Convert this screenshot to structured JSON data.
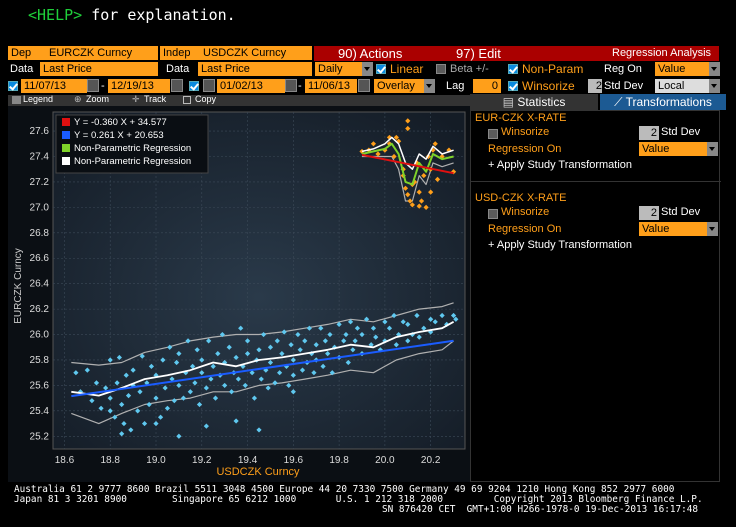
{
  "help": {
    "key": "<HELP>",
    "text": " for explanation."
  },
  "header": {
    "dep_label": "Dep",
    "dep_value": "EURCZK Curncy",
    "indep_label": "Indep",
    "indep_value": "USDCZK Curncy",
    "actions": "90) Actions",
    "edit": "97) Edit",
    "title": "Regression Analysis"
  },
  "row2": {
    "data_label_1": "Data",
    "data_value_1": "Last Price",
    "data_label_2": "Data",
    "data_value_2": "Last Price",
    "freq": "Daily",
    "linear": "Linear",
    "beta": "Beta +/-",
    "nonparam": "Non-Param",
    "reg_on_label": "Reg On",
    "reg_on_value": "Value"
  },
  "row3": {
    "start1": "11/07/13",
    "end1": "12/19/13",
    "start2": "01/02/13",
    "end2": "11/06/13",
    "overlay": "Overlay",
    "lag_label": "Lag",
    "lag_value": "0",
    "winsorize": "Winsorize",
    "std_num": "2",
    "std_label": "Std Dev",
    "ccy": "Local CCY"
  },
  "toolbar": {
    "legend": "Legend",
    "zoom": "Zoom",
    "track": "Track",
    "copy": "Copy"
  },
  "tabs": {
    "statistics": "Statistics",
    "transformations": "Transformations"
  },
  "right": {
    "sec1": {
      "title": "EUR-CZK X-RATE",
      "winsorize": "Winsorize",
      "std_num": "2",
      "std_label": "Std Dev",
      "reg_on": "Regression On",
      "reg_value": "Value",
      "apply": "+ Apply Study Transformation"
    },
    "sec2": {
      "title": "USD-CZK X-RATE",
      "winsorize": "Winsorize",
      "std_num": "2",
      "std_label": "Std Dev",
      "reg_on": "Regression On",
      "reg_value": "Value",
      "apply": "+ Apply Study Transformation"
    }
  },
  "footer": {
    "line1": "Australia 61 2 9777 8600 Brazil 5511 3048 4500 Europe 44 20 7330 7500 Germany 49 69 9204 1210 Hong Kong 852 2977 6000",
    "line2": "Japan 81 3 3201 8900        Singapore 65 6212 1000       U.S. 1 212 318 2000         Copyright 2013 Bloomberg Finance L.P.",
    "line3": "SN 876420 CET  GMT+1:00 H266-1978-0 19-Dec-2013 16:17:48"
  },
  "colors": {
    "orange": "#ff9f1a",
    "red": "#e01010",
    "blue": "#1a5cff",
    "green": "#7fd32a",
    "cyan": "#5fc8ef"
  },
  "chart_data": {
    "type": "scatter",
    "xlabel": "USDCZK Curncy",
    "ylabel": "EURCZK Curncy",
    "xlim": [
      18.55,
      20.35
    ],
    "ylim": [
      25.1,
      27.75
    ],
    "xticks": [
      "18.6",
      "18.8",
      "19.0",
      "19.2",
      "19.4",
      "19.6",
      "19.8",
      "20.0",
      "20.2"
    ],
    "yticks": [
      "25.2",
      "25.4",
      "25.6",
      "25.8",
      "26.0",
      "26.2",
      "26.4",
      "26.6",
      "26.8",
      "27.0",
      "27.2",
      "27.4",
      "27.6"
    ],
    "legend": [
      {
        "label": "Y = -0.360 X + 34.577",
        "color": "#e01010"
      },
      {
        "label": "Y = 0.261 X + 20.653",
        "color": "#1a5cff"
      },
      {
        "label": "Non-Parametric Regression",
        "color": "#7fd32a"
      },
      {
        "label": "Non-Parametric Regression",
        "color": "#ffffff"
      }
    ],
    "series_recent": {
      "name": "",
      "x": [
        19.9,
        19.93,
        19.95,
        19.97,
        20.0,
        20.02,
        20.04,
        20.05,
        20.06,
        20.08,
        20.08,
        20.09,
        20.1,
        20.1,
        20.11,
        20.12,
        20.12,
        20.13,
        20.14,
        20.15,
        20.15,
        20.16,
        20.17,
        20.18,
        20.19,
        20.2,
        20.21,
        20.22,
        20.23,
        20.25,
        20.28,
        20.3,
        20.02,
        20.1,
        20.2
      ],
      "y": [
        27.44,
        27.45,
        27.5,
        27.42,
        27.45,
        27.55,
        27.4,
        27.55,
        27.52,
        27.3,
        27.25,
        27.15,
        27.62,
        27.1,
        27.05,
        27.18,
        27.02,
        27.2,
        27.35,
        27.12,
        27.01,
        27.05,
        27.25,
        27.0,
        27.4,
        27.3,
        27.45,
        27.5,
        27.22,
        27.4,
        27.45,
        27.28,
        27.5,
        27.68,
        27.12
      ]
    },
    "series_hist": {
      "name": "",
      "x": [
        18.65,
        18.67,
        18.7,
        18.72,
        18.74,
        18.76,
        18.78,
        18.8,
        18.8,
        18.82,
        18.83,
        18.84,
        18.85,
        18.86,
        18.87,
        18.88,
        18.89,
        18.9,
        18.9,
        18.92,
        18.93,
        18.94,
        18.95,
        18.96,
        18.97,
        18.98,
        19.0,
        19.0,
        19.02,
        19.03,
        19.04,
        19.05,
        19.06,
        19.07,
        19.08,
        19.09,
        19.1,
        19.1,
        19.12,
        19.13,
        19.14,
        19.15,
        19.16,
        19.17,
        19.18,
        19.19,
        19.2,
        19.2,
        19.22,
        19.23,
        19.24,
        19.25,
        19.26,
        19.27,
        19.28,
        19.29,
        19.3,
        19.3,
        19.32,
        19.33,
        19.34,
        19.35,
        19.36,
        19.37,
        19.38,
        19.39,
        19.4,
        19.4,
        19.42,
        19.43,
        19.44,
        19.45,
        19.46,
        19.47,
        19.48,
        19.49,
        19.5,
        19.5,
        19.52,
        19.53,
        19.54,
        19.55,
        19.56,
        19.57,
        19.58,
        19.59,
        19.6,
        19.6,
        19.62,
        19.63,
        19.64,
        19.65,
        19.66,
        19.67,
        19.68,
        19.69,
        19.7,
        19.7,
        19.72,
        19.73,
        19.74,
        19.75,
        19.76,
        19.77,
        19.78,
        19.8,
        19.8,
        19.82,
        19.83,
        19.84,
        19.85,
        19.86,
        19.87,
        19.88,
        19.9,
        19.9,
        19.92,
        19.94,
        19.95,
        19.96,
        19.98,
        20.0,
        20.0,
        20.02,
        20.04,
        20.05,
        20.06,
        20.08,
        20.1,
        20.1,
        20.12,
        20.14,
        20.15,
        20.17,
        20.2,
        20.2,
        20.22,
        20.25,
        20.27,
        20.3,
        20.31,
        19.1,
        19.45,
        18.8,
        18.85,
        19.0,
        19.22,
        19.35,
        19.6
      ],
      "y": [
        25.7,
        25.55,
        25.72,
        25.48,
        25.62,
        25.42,
        25.58,
        25.8,
        25.5,
        25.35,
        25.62,
        25.82,
        25.45,
        25.3,
        25.68,
        25.52,
        25.25,
        25.6,
        25.72,
        25.4,
        25.55,
        25.83,
        25.3,
        25.62,
        25.45,
        25.75,
        25.5,
        25.68,
        25.35,
        25.8,
        25.58,
        25.42,
        25.9,
        25.65,
        25.48,
        25.78,
        25.6,
        25.85,
        25.5,
        25.7,
        25.95,
        25.55,
        25.75,
        25.62,
        25.88,
        25.45,
        25.7,
        25.8,
        25.58,
        25.95,
        25.65,
        25.75,
        25.5,
        25.85,
        25.68,
        26.0,
        25.6,
        25.78,
        25.9,
        25.55,
        25.7,
        25.82,
        25.65,
        26.05,
        25.75,
        25.6,
        25.85,
        25.95,
        25.7,
        25.5,
        25.8,
        25.88,
        25.65,
        26.0,
        25.72,
        25.58,
        25.9,
        25.78,
        25.62,
        25.95,
        25.7,
        25.85,
        26.02,
        25.75,
        25.6,
        25.92,
        25.8,
        25.68,
        26.0,
        25.88,
        25.72,
        25.95,
        25.78,
        26.05,
        25.85,
        25.7,
        25.92,
        25.8,
        26.05,
        25.75,
        25.95,
        25.85,
        26.0,
        25.7,
        25.9,
        26.08,
        25.82,
        25.95,
        26.0,
        25.78,
        26.1,
        25.88,
        25.95,
        26.05,
        25.85,
        26.0,
        26.12,
        25.92,
        26.05,
        25.98,
        25.88,
        26.1,
        25.95,
        26.05,
        26.15,
        25.92,
        26.0,
        26.1,
        25.95,
        26.08,
        26.0,
        26.15,
        25.98,
        26.05,
        26.12,
        26.02,
        26.1,
        26.15,
        26.08,
        26.15,
        26.12,
        25.2,
        25.25,
        25.4,
        25.22,
        25.3,
        25.28,
        25.32,
        25.55
      ]
    },
    "red_line": {
      "slope": -0.36,
      "intercept": 34.577,
      "x": [
        19.9,
        20.3
      ]
    },
    "blue_line": {
      "slope": 0.261,
      "intercept": 20.653,
      "x": [
        18.63,
        20.3
      ]
    },
    "np_white_hist": {
      "x": [
        18.63,
        18.75,
        18.85,
        18.95,
        19.05,
        19.15,
        19.25,
        19.35,
        19.45,
        19.55,
        19.65,
        19.75,
        19.85,
        19.95,
        20.05,
        20.15,
        20.25,
        20.3
      ],
      "y": [
        25.55,
        25.52,
        25.58,
        25.65,
        25.68,
        25.72,
        25.78,
        25.75,
        25.8,
        25.82,
        25.85,
        25.88,
        25.92,
        25.9,
        25.98,
        26.02,
        26.05,
        26.1
      ]
    },
    "np_grey_upper": {
      "x": [
        18.63,
        18.75,
        18.85,
        18.95,
        19.05,
        19.15,
        19.25,
        19.35,
        19.45,
        19.55,
        19.65,
        19.75,
        19.85,
        19.95,
        20.05,
        20.15,
        20.25,
        20.3
      ],
      "y": [
        25.78,
        25.76,
        25.78,
        25.86,
        25.9,
        25.95,
        25.98,
        26.0,
        26.0,
        26.02,
        26.05,
        26.08,
        26.12,
        26.1,
        26.15,
        26.2,
        26.22,
        26.25
      ]
    },
    "np_grey_lower": {
      "x": [
        18.63,
        18.75,
        18.85,
        18.95,
        19.05,
        19.15,
        19.25,
        19.35,
        19.45,
        19.55,
        19.65,
        19.75,
        19.85,
        19.95,
        20.05,
        20.15,
        20.25,
        20.3
      ],
      "y": [
        25.38,
        25.3,
        25.38,
        25.45,
        25.48,
        25.5,
        25.55,
        25.55,
        25.6,
        25.62,
        25.65,
        25.68,
        25.72,
        25.7,
        25.8,
        25.85,
        25.88,
        25.95
      ]
    },
    "np_green_recent": {
      "x": [
        19.9,
        19.95,
        20.0,
        20.03,
        20.06,
        20.09,
        20.12,
        20.15,
        20.18,
        20.21,
        20.25,
        20.3
      ],
      "y": [
        27.42,
        27.44,
        27.46,
        27.5,
        27.42,
        27.2,
        27.18,
        27.35,
        27.28,
        27.42,
        27.38,
        27.4
      ]
    },
    "np_white_recent": {
      "x": [
        19.9,
        19.95,
        20.0,
        20.03,
        20.06,
        20.09,
        20.12,
        20.15,
        20.18,
        20.21,
        20.25,
        20.3
      ],
      "y": [
        27.44,
        27.46,
        27.5,
        27.55,
        27.5,
        27.35,
        27.3,
        27.42,
        27.38,
        27.48,
        27.42,
        27.45
      ]
    },
    "np_grey_recent": {
      "x": [
        19.9,
        19.95,
        20.0,
        20.03,
        20.06,
        20.09,
        20.12,
        20.15,
        20.18,
        20.21,
        20.25,
        20.3
      ],
      "y": [
        27.4,
        27.4,
        27.4,
        27.4,
        27.3,
        27.05,
        27.05,
        27.25,
        27.18,
        27.35,
        27.32,
        27.35
      ]
    }
  }
}
